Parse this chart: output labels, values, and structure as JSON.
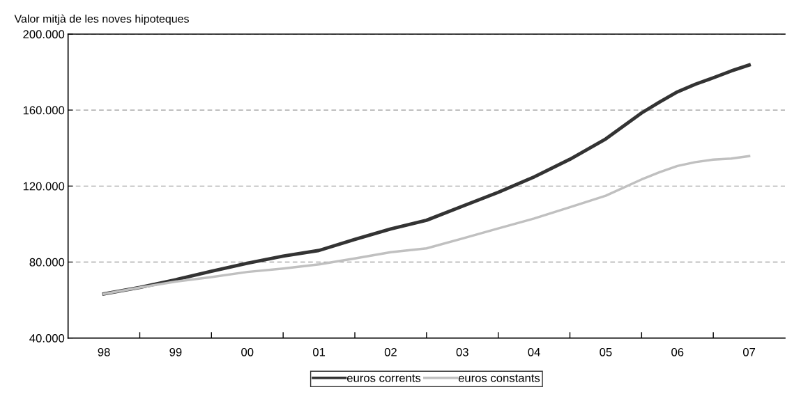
{
  "chart_data": {
    "type": "line",
    "ylabel": "Valor mitjà de les noves hipoteques",
    "x": [
      1998,
      1998.5,
      1999,
      1999.5,
      2000,
      2000.5,
      2001,
      2001.5,
      2002,
      2002.5,
      2003,
      2003.5,
      2004,
      2004.5,
      2005,
      2005.5,
      2005.75,
      2006,
      2006.25,
      2006.5,
      2006.75,
      2007
    ],
    "series": [
      {
        "name": "euros corrents",
        "color": "#333333",
        "values": [
          63200,
          66600,
          70700,
          75200,
          79400,
          83100,
          86100,
          91900,
          97400,
          102000,
          109400,
          116700,
          124800,
          134100,
          144800,
          158500,
          164200,
          169600,
          173600,
          177000,
          180600,
          183700
        ]
      },
      {
        "name": "euros constants",
        "color": "#c0c0c0",
        "values": [
          63200,
          66600,
          69700,
          72100,
          74800,
          76600,
          78800,
          81900,
          85200,
          87200,
          92400,
          97700,
          102900,
          108900,
          114900,
          123500,
          127300,
          130600,
          132600,
          133900,
          134500,
          135800
        ]
      }
    ],
    "xlim": [
      1997.5,
      2007.5
    ],
    "xticks": [
      {
        "value": 1998,
        "label": "98"
      },
      {
        "value": 1998.5,
        "label": null
      },
      {
        "value": 1999,
        "label": "99"
      },
      {
        "value": 1999.5,
        "label": null
      },
      {
        "value": 2000,
        "label": "00"
      },
      {
        "value": 2000.5,
        "label": null
      },
      {
        "value": 2001,
        "label": "01"
      },
      {
        "value": 2001.5,
        "label": null
      },
      {
        "value": 2002,
        "label": "02"
      },
      {
        "value": 2002.5,
        "label": null
      },
      {
        "value": 2003,
        "label": "03"
      },
      {
        "value": 2003.5,
        "label": null
      },
      {
        "value": 2004,
        "label": "04"
      },
      {
        "value": 2004.5,
        "label": null
      },
      {
        "value": 2005,
        "label": "05"
      },
      {
        "value": 2005.5,
        "label": null
      },
      {
        "value": 2006,
        "label": "06"
      },
      {
        "value": 2006.5,
        "label": null
      },
      {
        "value": 2007,
        "label": "07"
      }
    ],
    "ylim": [
      40000,
      200000
    ],
    "yticks": [
      {
        "value": 40000,
        "label": "40.000"
      },
      {
        "value": 80000,
        "label": "80.000"
      },
      {
        "value": 120000,
        "label": "120.000"
      },
      {
        "value": 160000,
        "label": "160.000"
      },
      {
        "value": 200000,
        "label": "200.000"
      }
    ],
    "grid": "y",
    "legend": "bottom",
    "marker": "none",
    "line_style": "solid"
  }
}
